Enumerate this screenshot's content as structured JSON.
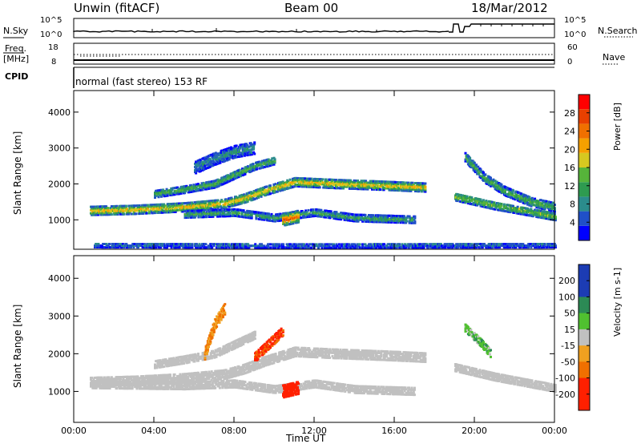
{
  "header": {
    "station": "Unwin (fitACF)",
    "beam": "Beam 00",
    "date": "18/Mar/2012"
  },
  "strips": {
    "nsky_label": "N.Sky",
    "nsky_ticks": [
      "10^5",
      "10^0"
    ],
    "nsearch_label": "N.Search",
    "nsearch_ticks": [
      "10^5",
      "10^0"
    ],
    "freq_label": "Freq.",
    "freq_unit": "[MHz]",
    "freq_ticks": [
      "18",
      "8"
    ],
    "nave_label": "Nave",
    "nave_ticks": [
      "60",
      "0"
    ],
    "cpid_label": "CPID",
    "cpid_text": "normal (fast stereo) 153 RF"
  },
  "colors": {
    "power": [
      "#0000ff",
      "#2050c8",
      "#2b8c8c",
      "#2e9b50",
      "#56b43a",
      "#d6c820",
      "#f5a000",
      "#f07000",
      "#e84000",
      "#ff0000"
    ],
    "velocity_positive": [
      "#1c3cb4",
      "#2c8a55",
      "#50c030"
    ],
    "velocity_ground": "#c0c0c0",
    "velocity_negative": [
      "#f0a020",
      "#f07000",
      "#ff2000"
    ]
  },
  "chart_data": [
    {
      "type": "heatmap",
      "title": "",
      "ylabel": "Slant Range [km]",
      "xlabel": "",
      "x_ticks": [
        "00:00",
        "04:00",
        "08:00",
        "12:00",
        "16:00",
        "20:00",
        "00:00"
      ],
      "x_range_hours": [
        0,
        24
      ],
      "y_ticks": [
        1000,
        2000,
        3000,
        4000
      ],
      "ylim": [
        180,
        4600
      ],
      "colorbar": {
        "label": "Power [dB]",
        "ticks": [
          4,
          8,
          12,
          16,
          20,
          24,
          28
        ],
        "range": [
          0,
          32
        ]
      },
      "bands": [
        {
          "name": "main-echo",
          "points": [
            [
              0.8,
              1250
            ],
            [
              3,
              1280
            ],
            [
              5.5,
              1350
            ],
            [
              7.5,
              1450
            ],
            [
              8.5,
              1600
            ],
            [
              9.5,
              1800
            ],
            [
              11,
              2050
            ],
            [
              13,
              2000
            ],
            [
              15.5,
              1950
            ],
            [
              17.5,
              1900
            ]
          ],
          "width_km": 230,
          "peak_db": 21
        },
        {
          "name": "upper-echo",
          "points": [
            [
              4,
              1720
            ],
            [
              5.5,
              1850
            ],
            [
              7,
              2000
            ],
            [
              8,
              2250
            ],
            [
              9,
              2500
            ],
            [
              10,
              2650
            ]
          ],
          "width_km": 200,
          "peak_db": 14
        },
        {
          "name": "high-scatter",
          "points": [
            [
              6,
              2450
            ],
            [
              7,
              2700
            ],
            [
              8,
              2900
            ],
            [
              9,
              3000
            ]
          ],
          "width_km": 320,
          "peak_db": 9
        },
        {
          "name": "lower-echo",
          "points": [
            [
              5.5,
              1150
            ],
            [
              8,
              1200
            ],
            [
              10,
              1050
            ],
            [
              12,
              1200
            ],
            [
              14,
              1050
            ],
            [
              17,
              1000
            ]
          ],
          "width_km": 180,
          "peak_db": 12
        },
        {
          "name": "intense-patch",
          "points": [
            [
              10.4,
              1000
            ],
            [
              11.2,
              1100
            ]
          ],
          "width_km": 320,
          "peak_db": 27
        },
        {
          "name": "right-streaks",
          "points": [
            [
              19.5,
              2750
            ],
            [
              20.5,
              2150
            ],
            [
              21.5,
              1800
            ],
            [
              22.8,
              1500
            ],
            [
              24,
              1350
            ]
          ],
          "width_km": 240,
          "peak_db": 14
        },
        {
          "name": "right-lower",
          "points": [
            [
              19,
              1650
            ],
            [
              21,
              1400
            ],
            [
              22.5,
              1250
            ],
            [
              24,
              1100
            ]
          ],
          "width_km": 220,
          "peak_db": 16
        },
        {
          "name": "near-range",
          "points": [
            [
              1,
              300
            ],
            [
              12,
              290
            ],
            [
              24,
              300
            ]
          ],
          "width_km": 130,
          "peak_db": 7
        }
      ]
    },
    {
      "type": "heatmap",
      "title": "",
      "ylabel": "Slant Range [km]",
      "xlabel": "Time UT",
      "x_ticks": [
        "00:00",
        "04:00",
        "08:00",
        "12:00",
        "16:00",
        "20:00",
        "00:00"
      ],
      "x_range_hours": [
        0,
        24
      ],
      "y_ticks": [
        1000,
        2000,
        3000,
        4000
      ],
      "ylim": [
        180,
        4600
      ],
      "colorbar": {
        "label": "Velocity [m s-1]",
        "ticks": [
          200,
          100,
          50,
          15,
          -15,
          -50,
          -100,
          -200
        ],
        "range": [
          -250,
          250
        ]
      },
      "bands": [
        {
          "name": "ground-main",
          "points": [
            [
              0.8,
              1250
            ],
            [
              3,
              1280
            ],
            [
              5.5,
              1350
            ],
            [
              7.5,
              1450
            ],
            [
              8.5,
              1600
            ],
            [
              9.5,
              1800
            ],
            [
              11,
              2050
            ],
            [
              13,
              2000
            ],
            [
              15.5,
              1950
            ],
            [
              17.5,
              1900
            ]
          ],
          "width_km": 230,
          "velocity": 0
        },
        {
          "name": "ground-upper",
          "points": [
            [
              4,
              1720
            ],
            [
              5.5,
              1850
            ],
            [
              7,
              2000
            ],
            [
              8,
              2250
            ],
            [
              9,
              2500
            ]
          ],
          "width_km": 200,
          "velocity": 0
        },
        {
          "name": "ground-lower",
          "points": [
            [
              0.8,
              1180
            ],
            [
              5.5,
              1150
            ],
            [
              8,
              1200
            ],
            [
              10,
              1050
            ],
            [
              12,
              1200
            ],
            [
              14,
              1050
            ],
            [
              17,
              1000
            ]
          ],
          "width_km": 180,
          "velocity": 0
        },
        {
          "name": "red-streak",
          "points": [
            [
              9,
              1900
            ],
            [
              9.7,
              2250
            ],
            [
              10.4,
              2600
            ]
          ],
          "width_km": 230,
          "velocity": -160
        },
        {
          "name": "red-patch",
          "points": [
            [
              10.4,
              1000
            ],
            [
              11.2,
              1100
            ]
          ],
          "width_km": 320,
          "velocity": -220
        },
        {
          "name": "green-streak",
          "points": [
            [
              19.5,
              2700
            ],
            [
              20.3,
              2300
            ],
            [
              20.8,
              2000
            ]
          ],
          "width_km": 220,
          "velocity": 40
        },
        {
          "name": "ground-right",
          "points": [
            [
              19,
              1650
            ],
            [
              21,
              1400
            ],
            [
              22.5,
              1250
            ],
            [
              24,
              1100
            ]
          ],
          "width_km": 220,
          "velocity": 0
        },
        {
          "name": "orange-scatter",
          "points": [
            [
              6.5,
              2000
            ],
            [
              7,
              2800
            ],
            [
              7.5,
              3200
            ]
          ],
          "width_km": 300,
          "velocity": -60
        }
      ]
    }
  ]
}
